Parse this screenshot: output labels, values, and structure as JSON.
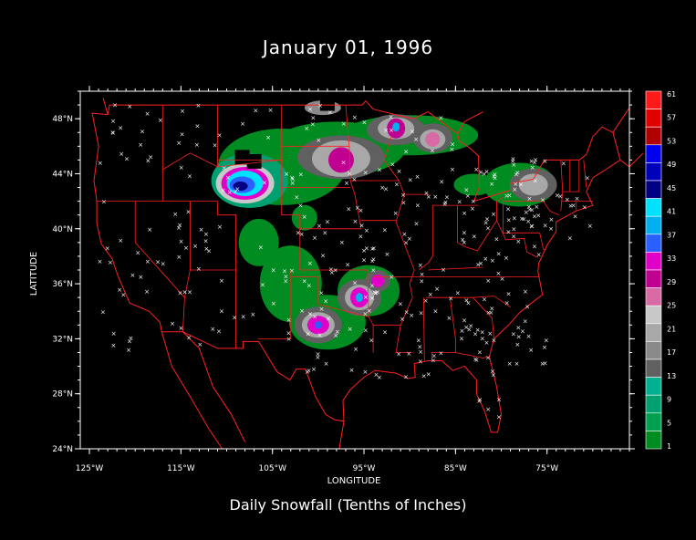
{
  "title": "January 01, 1996",
  "subtitle": "Daily Snowfall (Tenths of Inches)",
  "x_axis": {
    "label": "LONGITUDE",
    "ticks": [
      {
        "value": -125,
        "label": "125°W"
      },
      {
        "value": -115,
        "label": "115°W"
      },
      {
        "value": -105,
        "label": "105°W"
      },
      {
        "value": -95,
        "label": "95°W"
      },
      {
        "value": -85,
        "label": "85°W"
      },
      {
        "value": -75,
        "label": "75°W"
      }
    ]
  },
  "y_axis": {
    "label": "LATITUDE",
    "ticks": [
      {
        "value": 24,
        "label": "24°N"
      },
      {
        "value": 28,
        "label": "28°N"
      },
      {
        "value": 32,
        "label": "32°N"
      },
      {
        "value": 36,
        "label": "36°N"
      },
      {
        "value": 40,
        "label": "40°N"
      },
      {
        "value": 44,
        "label": "44°N"
      },
      {
        "value": 48,
        "label": "48°N"
      }
    ]
  },
  "legend": {
    "labels": [
      "61",
      "57",
      "53",
      "49",
      "45",
      "41",
      "37",
      "33",
      "29",
      "25",
      "21",
      "17",
      "13",
      "9",
      "5",
      "1"
    ],
    "colors": [
      "#ff1a1a",
      "#e00000",
      "#b00000",
      "#0000ee",
      "#0000bb",
      "#000080",
      "#00e0ff",
      "#00b0f0",
      "#2a60ff",
      "#e000c8",
      "#c00090",
      "#d86aa6",
      "#c8c8c8",
      "#a8a8a8",
      "#8a8a8a",
      "#606060",
      "#00b090",
      "#00a070",
      "#00a050",
      "#008c20"
    ]
  },
  "colors": {
    "border": "#ff2020",
    "frame": "#ffffff",
    "background": "#000000",
    "land_low": "#008c20"
  },
  "chart_data": {
    "type": "heatmap",
    "title": "January 01, 1996",
    "subtitle": "Daily Snowfall (Tenths of Inches)",
    "xlabel": "LONGITUDE",
    "ylabel": "LATITUDE",
    "xlim": [
      -126,
      -66
    ],
    "ylim": [
      24,
      50
    ],
    "snow_areas": [
      {
        "lon": -108.5,
        "lat": 43.2,
        "peak": 45
      },
      {
        "lon": -97.5,
        "lat": 45.0,
        "peak": 29
      },
      {
        "lon": -91.5,
        "lat": 47.3,
        "peak": 29
      },
      {
        "lon": -87.5,
        "lat": 46.5,
        "peak": 25
      },
      {
        "lon": -76.5,
        "lat": 43.2,
        "peak": 17
      },
      {
        "lon": -95.5,
        "lat": 35.0,
        "peak": 33
      },
      {
        "lon": -100.0,
        "lat": 33.0,
        "peak": 29
      },
      {
        "lon": -93.5,
        "lat": 36.2,
        "peak": 25
      }
    ]
  }
}
